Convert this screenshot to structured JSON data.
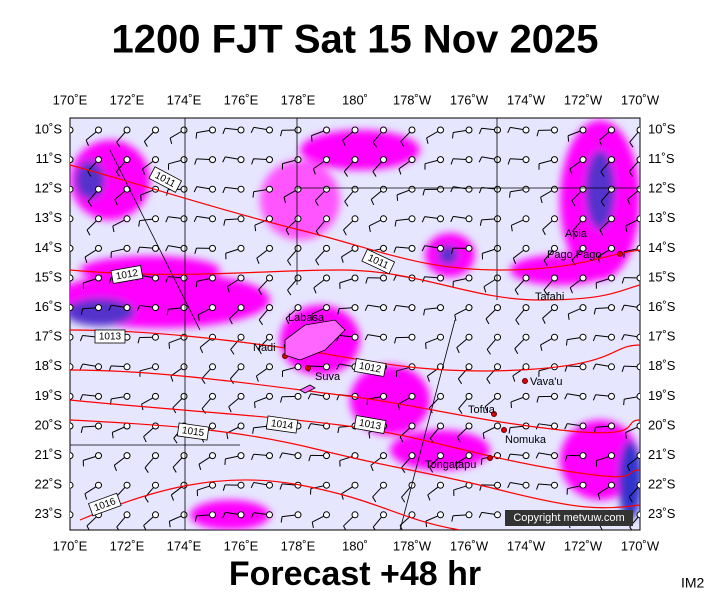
{
  "title": "1200 FJT Sat 15 Nov 2025",
  "footer": "Forecast +48 hr",
  "corner_label": "IM2",
  "copyright": "Copyright metvuw.com",
  "lon_labels": [
    "170˚E",
    "172˚E",
    "174˚E",
    "176˚E",
    "178˚E",
    "180˚",
    "178˚W",
    "176˚W",
    "174˚W",
    "172˚W",
    "170˚W"
  ],
  "lat_labels": [
    "10˚S",
    "11˚S",
    "12˚S",
    "13˚S",
    "14˚S",
    "15˚S",
    "16˚S",
    "17˚S",
    "18˚S",
    "19˚S",
    "20˚S",
    "21˚S",
    "22˚S",
    "23˚S"
  ],
  "places": [
    "Labasa",
    "Nadi",
    "Suva",
    "Apia",
    "Pago Pago",
    "Tafahi",
    "Vava'u",
    "Tofua",
    "Nomuka",
    "Tongatapu"
  ],
  "isobar_labels": [
    "1011",
    "1011",
    "1012",
    "1013",
    "1012",
    "1013",
    "1014",
    "1015",
    "1016"
  ]
}
